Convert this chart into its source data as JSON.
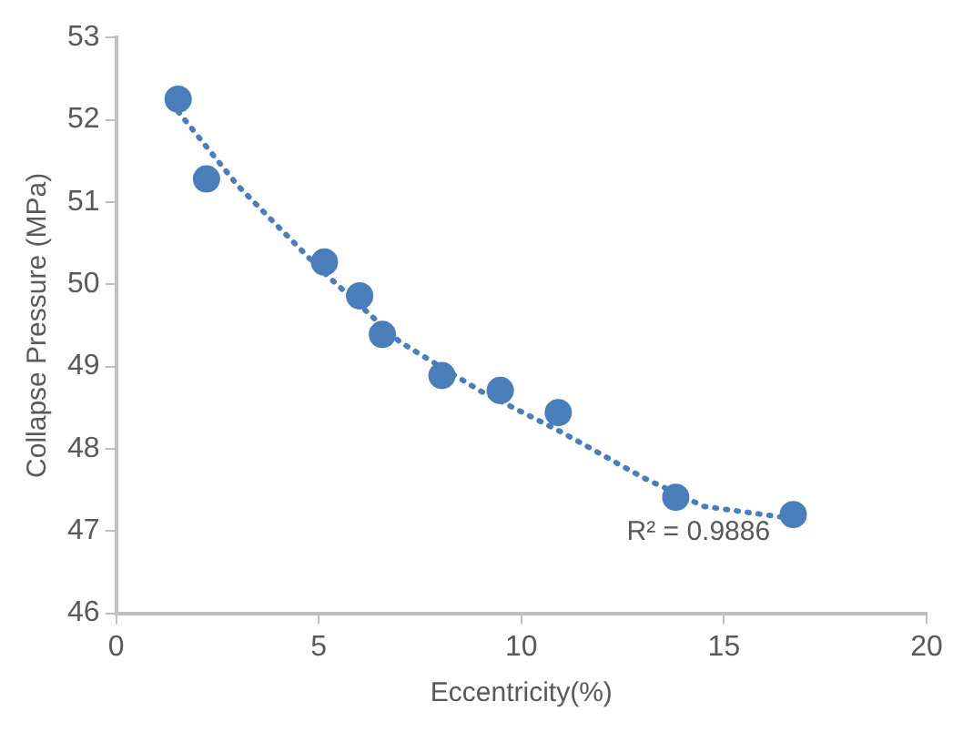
{
  "chart_data": {
    "type": "scatter",
    "xlabel": "Eccentricity(%)",
    "ylabel": "Collapse Pressure (MPa)",
    "xlim": [
      0,
      20
    ],
    "xticks": [
      0,
      5,
      10,
      15,
      20
    ],
    "ylim": [
      46,
      53
    ],
    "yticks": [
      46,
      47,
      48,
      49,
      50,
      51,
      52,
      53
    ],
    "grid": false,
    "legend": false,
    "marker": "circle",
    "series": [
      {
        "color": "#4a7ebb",
        "x": [
          1.53,
          2.23,
          5.14,
          6.01,
          6.57,
          8.04,
          9.48,
          10.91,
          13.81,
          16.71
        ],
        "values": [
          52.25,
          51.28,
          50.27,
          49.86,
          49.39,
          48.89,
          48.71,
          48.44,
          47.41,
          47.2
        ]
      },
      {
        "type": "line",
        "color": "#4a7ebb",
        "line_style": "dotted",
        "marker": "none",
        "x": [
          1.53,
          3,
          5,
          7,
          9,
          11,
          13,
          14.5,
          16.71
        ],
        "values": [
          52.1,
          51.2,
          50.2,
          49.3,
          48.7,
          48.2,
          47.65,
          47.3,
          47.15
        ]
      }
    ],
    "annotations": [
      "R² = 0.9886"
    ]
  }
}
